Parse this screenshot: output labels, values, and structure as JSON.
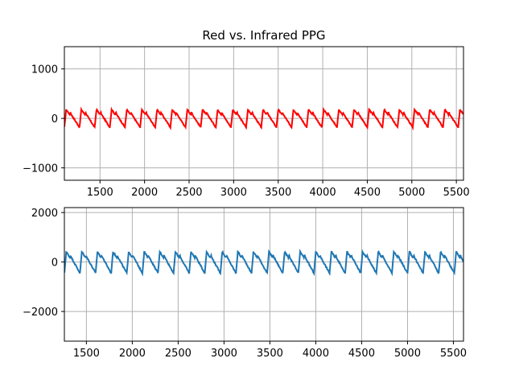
{
  "chart_data": [
    {
      "type": "line",
      "title": "Red vs. Infrared PPG",
      "xlabel": "",
      "ylabel": "",
      "xlim": [
        1100,
        5580
      ],
      "ylim": [
        -1250,
        1450
      ],
      "xticks": [
        1500,
        2000,
        2500,
        3000,
        3500,
        4000,
        4500,
        5000,
        5500
      ],
      "yticks": [
        1000,
        0,
        -1000
      ],
      "xtick_labels": [
        "1500",
        "2000",
        "2500",
        "3000",
        "3500",
        "4000",
        "4500",
        "5000",
        "5500"
      ],
      "ytick_labels": [
        "1000",
        "0",
        "−1000"
      ],
      "grid": true,
      "series": [
        {
          "color": "#ff0000",
          "signal": {
            "x_start": 1100,
            "x_end": 5580,
            "beat_period": 170,
            "baseline": 0,
            "peak": 180,
            "trough": -180,
            "notch": 80
          }
        }
      ]
    },
    {
      "type": "line",
      "title": "",
      "xlabel": "",
      "ylabel": "",
      "xlim": [
        1260,
        5610
      ],
      "ylim": [
        -3200,
        2200
      ],
      "xticks": [
        1500,
        2000,
        2500,
        3000,
        3500,
        4000,
        4500,
        5000,
        5500
      ],
      "yticks": [
        2000,
        0,
        -2000
      ],
      "xtick_labels": [
        "1500",
        "2000",
        "2500",
        "3000",
        "3500",
        "4000",
        "4500",
        "5000",
        "5500"
      ],
      "ytick_labels": [
        "2000",
        "0",
        "−2000"
      ],
      "grid": true,
      "series": [
        {
          "color": "#1f77b4",
          "signal": {
            "x_start": 1260,
            "x_end": 5610,
            "beat_period": 170,
            "baseline": 0,
            "peak": 420,
            "trough": -450,
            "notch": 180
          }
        }
      ]
    }
  ]
}
